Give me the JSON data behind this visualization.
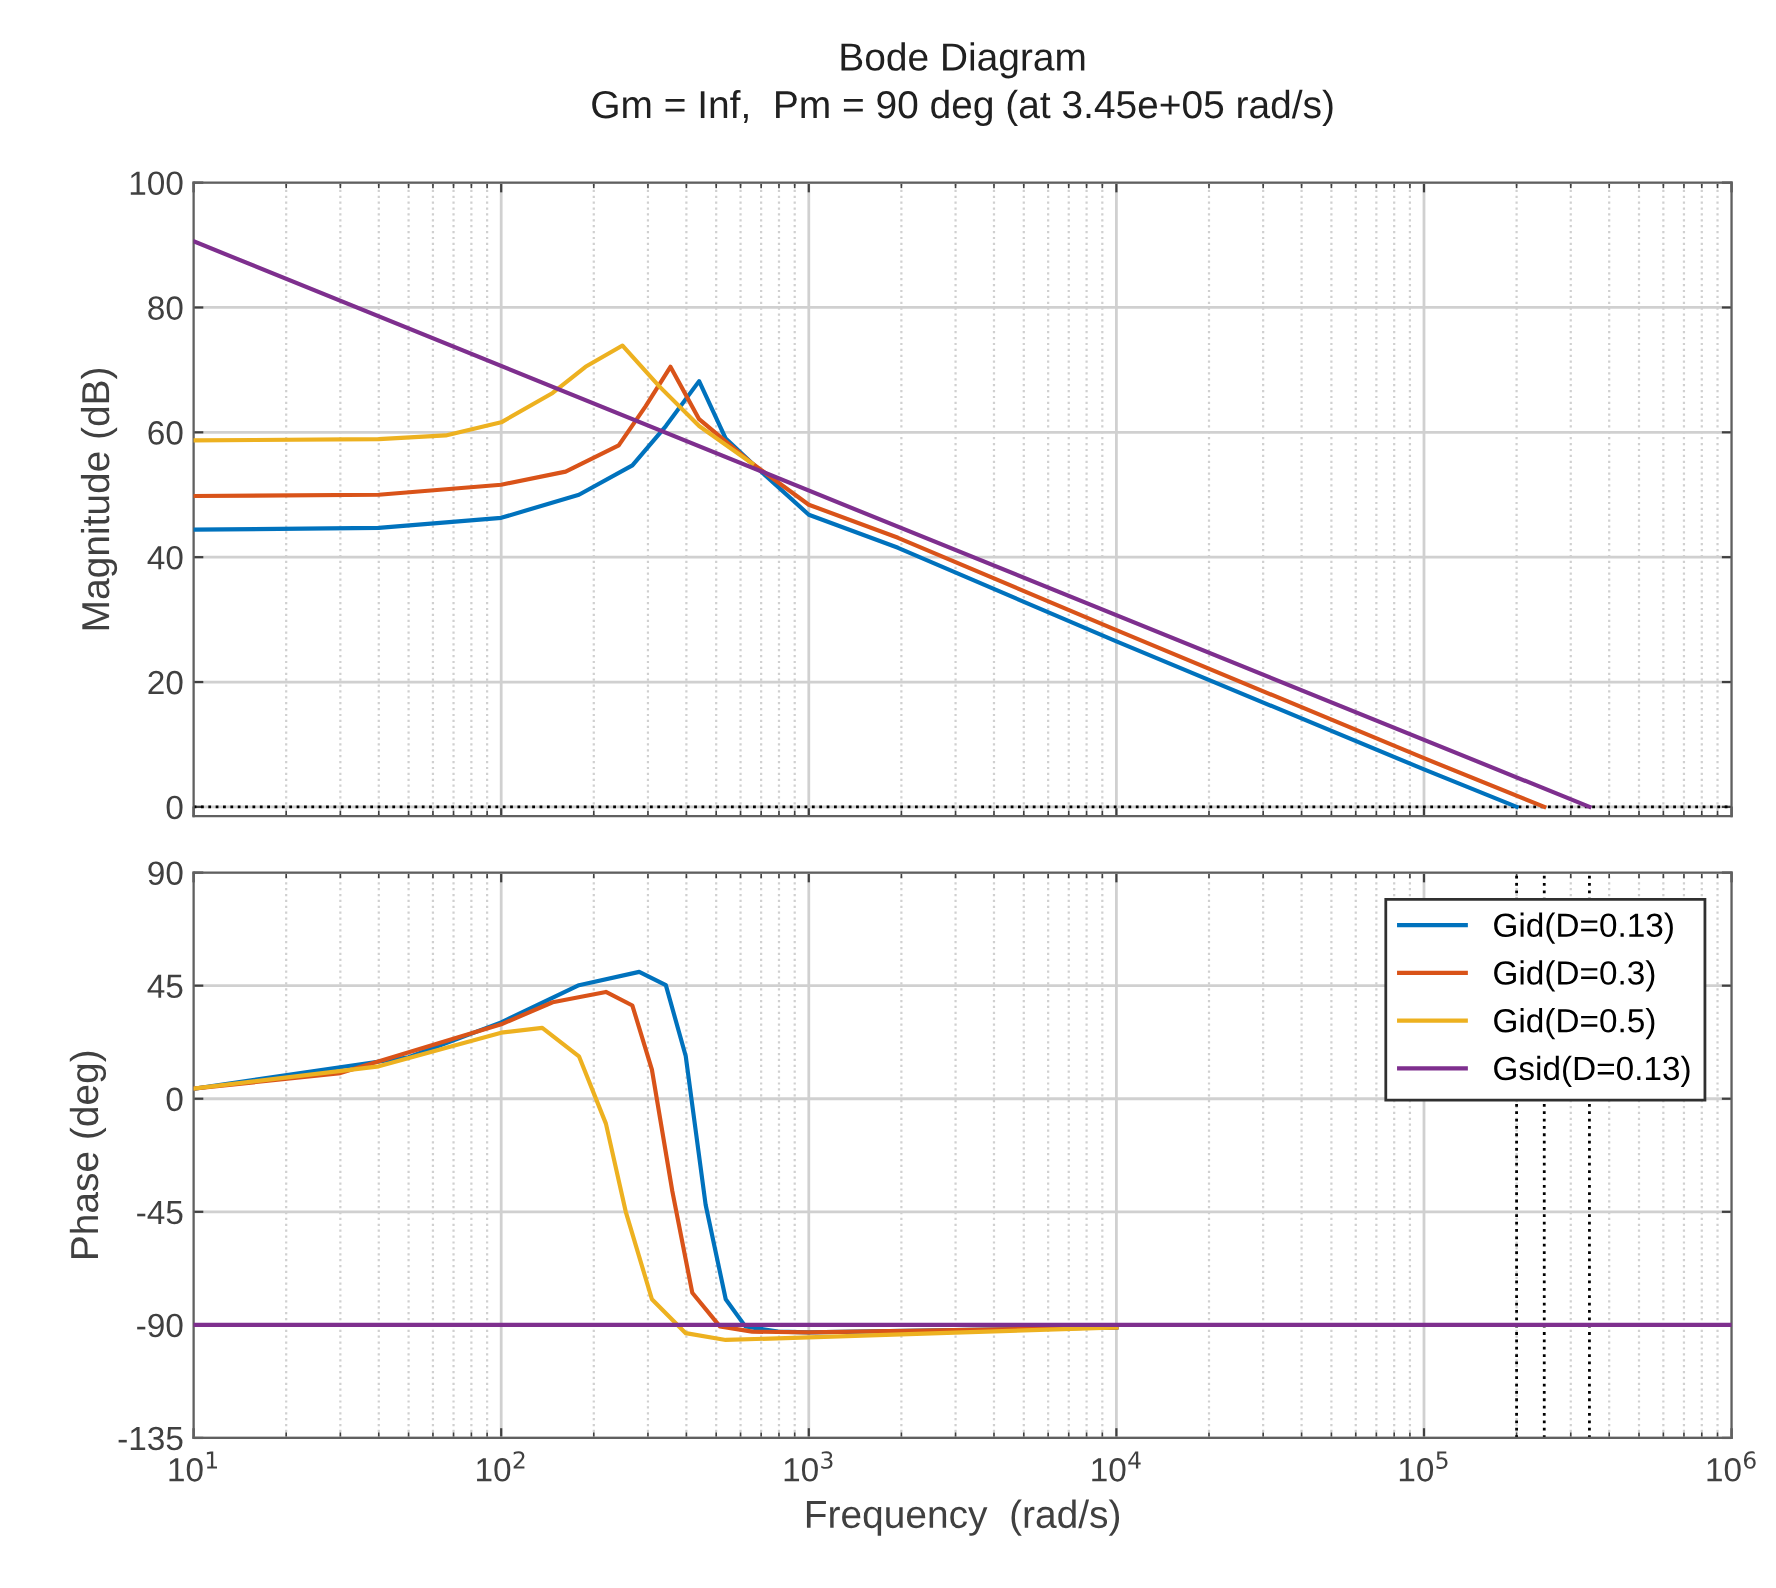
{
  "chart_data": [
    {
      "type": "line",
      "title": "Bode Diagram",
      "subtitle": "Gm = Inf,  Pm = 90 deg (at 3.45e+05 rad/s)",
      "ylabel": "Magnitude (dB)",
      "log": "x",
      "grid": true,
      "tick_labels": "y",
      "line_style": "solid",
      "marker": "none",
      "xlim": [
        10,
        1000000
      ],
      "ylim": [
        -1.5,
        100
      ],
      "yticks": [
        0,
        20,
        40,
        60,
        80,
        100
      ],
      "xticks": [
        {
          "value": 10,
          "label": null
        },
        {
          "value": 100,
          "label": null
        },
        {
          "value": 1000,
          "label": null
        },
        {
          "value": 10000,
          "label": null
        },
        {
          "value": 100000,
          "label": null
        },
        {
          "value": 1000000,
          "label": null
        }
      ],
      "ref_lines": [
        {
          "axis": "y",
          "value": 0,
          "label": null,
          "color": "#000000",
          "line_style": "dotted"
        }
      ],
      "series": [
        {
          "color": "#0072bd",
          "x": [
            10,
            40,
            100,
            179,
            267,
            343,
            440,
            537,
            655,
            1000,
            1950,
            10000,
            100000,
            200000
          ],
          "values": [
            44.4,
            44.7,
            46.3,
            50,
            54.7,
            61,
            68.2,
            59,
            55,
            46.8,
            41.5,
            26.5,
            6.0,
            0
          ]
        },
        {
          "color": "#d95319",
          "x": [
            10,
            40,
            100,
            162,
            241,
            295,
            355,
            440,
            655,
            1000,
            1950,
            10000,
            100000,
            246000
          ],
          "values": [
            49.8,
            50,
            51.6,
            53.7,
            57.9,
            64.2,
            70.5,
            62.1,
            55,
            48.4,
            43.1,
            28.3,
            7.8,
            0
          ]
        },
        {
          "color": "#edb120",
          "x": [
            10,
            40,
            66,
            100,
            147,
            188,
            248,
            326,
            440,
            655
          ],
          "values": [
            58.7,
            58.9,
            59.5,
            61.6,
            66.3,
            70.5,
            73.9,
            67.4,
            61,
            55
          ]
        },
        {
          "color": "#7e2f8e",
          "x": [
            10,
            345000
          ],
          "values": [
            90.6,
            0
          ]
        }
      ]
    },
    {
      "type": "line",
      "xlabel": "Frequency  (rad/s)",
      "ylabel": "Phase (deg)",
      "log": "x",
      "grid": true,
      "legend": "top right",
      "line_style": "solid",
      "marker": "none",
      "xlim": [
        10,
        1000000
      ],
      "ylim": [
        -135,
        90
      ],
      "yticks": [
        -135,
        -90,
        -45,
        0,
        45,
        90
      ],
      "xticks": [
        {
          "value": 10,
          "label": "10$^{1}$"
        },
        {
          "value": 100,
          "label": "10$^{2}$"
        },
        {
          "value": 1000,
          "label": "10$^{3}$"
        },
        {
          "value": 10000,
          "label": "10$^{4}$"
        },
        {
          "value": 100000,
          "label": "10$^{5}$"
        },
        {
          "value": 1000000,
          "label": "10$^{6}$"
        }
      ],
      "ref_lines": [
        {
          "axis": "x",
          "value": 200000,
          "label": null,
          "color": "#000000",
          "line_style": "dotted"
        },
        {
          "axis": "x",
          "value": 246000,
          "label": null,
          "color": "#000000",
          "line_style": "dotted"
        },
        {
          "axis": "x",
          "value": 345000,
          "label": null,
          "color": "#000000",
          "line_style": "dotted"
        }
      ],
      "series": [
        {
          "name": "Gid(D=0.13)",
          "color": "#0072bd",
          "x": [
            10,
            50,
            100,
            179,
            281,
            343,
            398,
            462,
            537,
            622,
            794,
            1000,
            10000
          ],
          "values": [
            4.0,
            16.5,
            30.4,
            45.2,
            50.5,
            45.2,
            17,
            -42.2,
            -79.8,
            -90.6,
            -92.7,
            -93,
            -91
          ]
        },
        {
          "name": "Gid(D=0.3)",
          "color": "#d95319",
          "x": [
            10,
            30,
            100,
            147,
            219,
            267,
            309,
            360,
            418,
            514,
            655,
            1000,
            10000
          ],
          "values": [
            4.0,
            10.2,
            29.6,
            38.4,
            42.5,
            37.1,
            11.6,
            -36.8,
            -77.2,
            -90.6,
            -92.7,
            -93,
            -91
          ]
        },
        {
          "name": "Gid(D=0.5)",
          "color": "#edb120",
          "x": [
            10,
            40,
            100,
            136,
            179,
            219,
            254,
            309,
            398,
            537,
            1000,
            3160,
            10000
          ],
          "values": [
            4.0,
            12.9,
            26.3,
            28.2,
            16.9,
            -9.9,
            -44.9,
            -79.8,
            -93.3,
            -96,
            -95,
            -93,
            -91
          ]
        },
        {
          "name": "Gsid(D=0.13)",
          "color": "#7e2f8e",
          "x": [
            10,
            1000000
          ],
          "values": [
            -90,
            -90
          ]
        }
      ]
    }
  ]
}
